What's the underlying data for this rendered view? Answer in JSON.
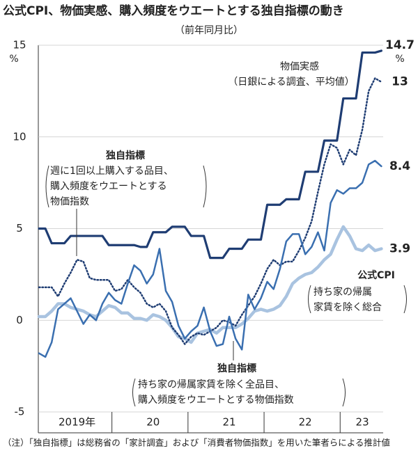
{
  "chart_data": {
    "type": "line",
    "title": "公式CPI、物価実感、購入頻度をウエートとする独自指標の動き",
    "subtitle": "（前年同月比）",
    "y_unit": "%",
    "ylim": [
      -5,
      15
    ],
    "yticks": [
      -5,
      0,
      5,
      10,
      15
    ],
    "grid": true,
    "categories": [
      null,
      null,
      null,
      null,
      null,
      null,
      "2019年",
      null,
      null,
      null,
      null,
      null,
      null,
      null,
      null,
      null,
      null,
      null,
      "20",
      null,
      null,
      null,
      null,
      null,
      null,
      null,
      null,
      null,
      null,
      null,
      "21",
      null,
      null,
      null,
      null,
      null,
      null,
      null,
      null,
      null,
      null,
      null,
      "22",
      null,
      null,
      null,
      null,
      null,
      null,
      null,
      null,
      "23",
      null,
      null,
      null
    ],
    "series": [
      {
        "name": "物価実感",
        "color": "#1f3d73",
        "dash": "solid",
        "values": [
          5.0,
          5.0,
          4.2,
          4.2,
          4.2,
          4.6,
          4.6,
          4.6,
          4.6,
          4.6,
          4.6,
          4.1,
          4.1,
          4.1,
          4.1,
          4.1,
          4.0,
          4.0,
          4.8,
          4.8,
          4.8,
          5.1,
          5.1,
          5.1,
          4.6,
          4.6,
          4.6,
          3.4,
          3.4,
          3.4,
          3.9,
          3.9,
          3.9,
          4.4,
          4.4,
          4.4,
          6.3,
          6.3,
          6.3,
          6.6,
          6.6,
          6.6,
          8.1,
          8.1,
          8.1,
          9.8,
          9.8,
          9.8,
          12.1,
          12.1,
          12.1,
          14.6,
          14.6,
          14.6,
          14.7
        ]
      },
      {
        "name": "独自指標",
        "color": "#1f3d73",
        "dash": "dotted",
        "values": [
          1.8,
          1.8,
          1.8,
          1.3,
          2.0,
          2.6,
          3.3,
          3.2,
          2.3,
          2.2,
          2.2,
          2.2,
          1.6,
          1.7,
          2.2,
          1.8,
          1.5,
          0.9,
          0.7,
          0.9,
          0.5,
          -0.4,
          -0.8,
          -1.3,
          -0.9,
          -0.7,
          -0.8,
          -0.6,
          -0.4,
          0.0,
          -0.1,
          -0.3,
          0.3,
          0.8,
          1.3,
          2.0,
          2.8,
          3.3,
          3.0,
          3.2,
          3.2,
          3.8,
          4.5,
          5.4,
          7.0,
          8.5,
          9.6,
          9.4,
          8.5,
          9.3,
          9.0,
          10.4,
          12.5,
          13.2,
          13.0
        ]
      },
      {
        "name": "独自指標",
        "color": "#3a6fb0",
        "dash": "solid",
        "values": [
          -1.8,
          -2.0,
          -1.2,
          0.6,
          0.9,
          1.2,
          0.5,
          -0.2,
          0.3,
          0.0,
          0.9,
          1.5,
          1.1,
          0.9,
          2.0,
          3.0,
          2.7,
          2.0,
          2.5,
          3.9,
          1.6,
          1.0,
          -0.3,
          -1.0,
          -0.6,
          -0.3,
          0.7,
          -0.6,
          -1.4,
          -1.3,
          0.2,
          -1.0,
          -1.6,
          1.4,
          0.6,
          1.2,
          2.1,
          1.7,
          2.8,
          4.3,
          4.7,
          4.7,
          3.6,
          4.0,
          4.8,
          3.8,
          6.4,
          7.1,
          6.9,
          7.2,
          7.2,
          7.5,
          8.5,
          8.7,
          8.4
        ]
      },
      {
        "name": "公式CPI",
        "color": "#a9c3e0",
        "dash": "solid",
        "values": [
          0.2,
          0.2,
          0.5,
          0.9,
          0.9,
          0.7,
          0.6,
          0.5,
          0.3,
          0.2,
          0.5,
          0.8,
          0.7,
          0.4,
          0.4,
          0.1,
          0.1,
          0.0,
          0.3,
          0.2,
          0.0,
          -0.4,
          -0.9,
          -1.0,
          -1.2,
          -0.7,
          -0.6,
          -0.5,
          -0.7,
          -0.4,
          -0.4,
          -0.4,
          -0.2,
          0.1,
          0.5,
          0.6,
          0.5,
          0.6,
          0.8,
          1.3,
          2.0,
          2.3,
          2.5,
          2.6,
          2.9,
          3.3,
          3.6,
          4.4,
          5.1,
          4.6,
          3.9,
          3.8,
          4.1,
          3.8,
          3.9
        ]
      }
    ],
    "annotations": [
      "（日銀による調査、平均値）",
      "週に1回以上購入する品目、",
      "購入頻度をウエートとする",
      "物価指数",
      "持ち家の帰属",
      "家賃を除く総合",
      "持ち家の帰属家賃を除く全品目、",
      "購入頻度をウエートとする物価指数"
    ],
    "note": "（注）「独自指標」は総務省の「家計調査」および「消費者物価指数」を用いた筆者らによる推計値"
  }
}
